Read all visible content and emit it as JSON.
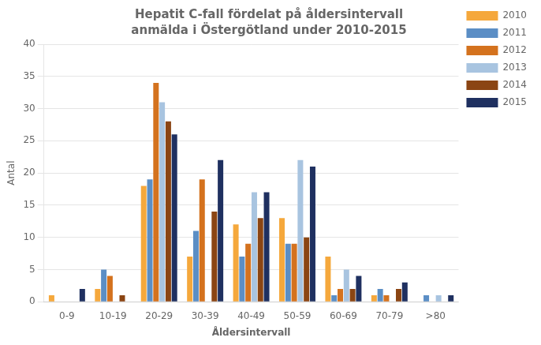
{
  "chart_data": {
    "type": "bar",
    "title": "Hepatit C-fall fördelat på åldersintervall",
    "subtitle": "anmälda i Östergötland under 2010-2015",
    "xlabel": "Åldersintervall",
    "ylabel": "Antal",
    "categories": [
      "0-9",
      "10-19",
      "20-29",
      "30-39",
      "40-49",
      "50-59",
      "60-69",
      "70-79",
      ">80"
    ],
    "series": [
      {
        "name": "2010",
        "color": "#F5A83C",
        "values": [
          1,
          2,
          18,
          7,
          12,
          13,
          7,
          1,
          0
        ]
      },
      {
        "name": "2011",
        "color": "#5B8EC5",
        "values": [
          0,
          5,
          19,
          11,
          7,
          9,
          1,
          2,
          1
        ]
      },
      {
        "name": "2012",
        "color": "#D4721E",
        "values": [
          0,
          4,
          34,
          19,
          9,
          9,
          2,
          1,
          0
        ]
      },
      {
        "name": "2013",
        "color": "#A8C4E0",
        "values": [
          0,
          0,
          31,
          0,
          17,
          22,
          5,
          0,
          1
        ]
      },
      {
        "name": "2014",
        "color": "#8B4513",
        "values": [
          0,
          1,
          28,
          14,
          13,
          10,
          2,
          2,
          0
        ]
      },
      {
        "name": "2015",
        "color": "#1F3060",
        "values": [
          2,
          0,
          26,
          22,
          17,
          21,
          4,
          3,
          1
        ]
      }
    ],
    "ylim": [
      0,
      40
    ],
    "yticks": [
      0,
      5,
      10,
      15,
      20,
      25,
      30,
      35,
      40
    ],
    "grid": true,
    "legend": "right"
  }
}
